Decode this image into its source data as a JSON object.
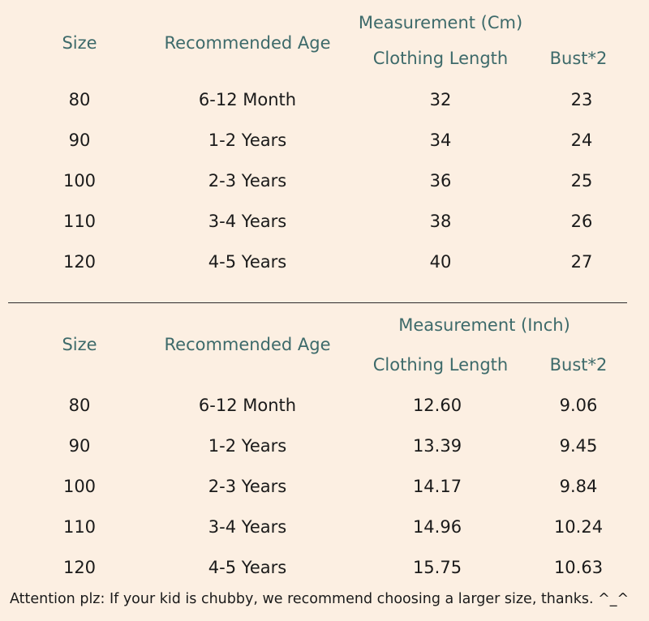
{
  "tables": [
    {
      "group_header": "Measurement (Cm)",
      "headers": {
        "size": "Size",
        "age": "Recommended Age",
        "length": "Clothing Length",
        "bust": "Bust*2"
      },
      "rows": [
        {
          "size": "80",
          "age": "6-12 Month",
          "length": "32",
          "bust": "23"
        },
        {
          "size": "90",
          "age": "1-2 Years",
          "length": "34",
          "bust": "24"
        },
        {
          "size": "100",
          "age": "2-3 Years",
          "length": "36",
          "bust": "25"
        },
        {
          "size": "110",
          "age": "3-4 Years",
          "length": "38",
          "bust": "26"
        },
        {
          "size": "120",
          "age": "4-5 Years",
          "length": "40",
          "bust": "27"
        }
      ]
    },
    {
      "group_header": "Measurement (Inch)",
      "headers": {
        "size": "Size",
        "age": "Recommended Age",
        "length": "Clothing Length",
        "bust": "Bust*2"
      },
      "rows": [
        {
          "size": "80",
          "age": "6-12 Month",
          "length": "12.60",
          "bust": "9.06"
        },
        {
          "size": "90",
          "age": "1-2 Years",
          "length": "13.39",
          "bust": "9.45"
        },
        {
          "size": "100",
          "age": "2-3 Years",
          "length": "14.17",
          "bust": "9.84"
        },
        {
          "size": "110",
          "age": "3-4 Years",
          "length": "14.96",
          "bust": "10.24"
        },
        {
          "size": "120",
          "age": "4-5 Years",
          "length": "15.75",
          "bust": "10.63"
        }
      ]
    }
  ],
  "note": "Attention plz: If your kid is chubby, we recommend choosing a larger size, thanks. ^_^",
  "colors": {
    "background": "#fcefe2",
    "header_text": "#3d6a6a",
    "value_text": "#1a1a1a",
    "divider": "#2b2b2b"
  }
}
